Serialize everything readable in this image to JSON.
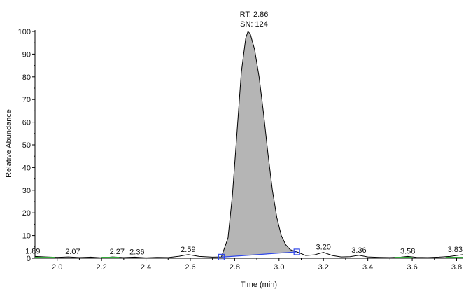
{
  "chart_data": {
    "type": "line",
    "xlabel": "Time (min)",
    "ylabel": "Relative Abundance",
    "xlim": [
      1.9,
      3.83
    ],
    "ylim": [
      0,
      100
    ],
    "x_ticks": [
      "2.0",
      "2.2",
      "2.4",
      "2.6",
      "2.8",
      "3.0",
      "3.2",
      "3.4",
      "3.6",
      "3.8"
    ],
    "y_ticks": [
      "0",
      "10",
      "20",
      "30",
      "40",
      "50",
      "60",
      "70",
      "80",
      "90",
      "100"
    ],
    "peak": {
      "rt_label": "RT: 2.86",
      "sn_label": "SN: 124",
      "apex_x": 2.86,
      "apex_y": 100,
      "start_x": 2.74,
      "start_y": 0.5,
      "end_x": 3.08,
      "end_y": 2.8
    },
    "annotations": [
      {
        "x": 1.89,
        "label": "1.89"
      },
      {
        "x": 2.07,
        "label": "2.07"
      },
      {
        "x": 2.27,
        "label": "2.27"
      },
      {
        "x": 2.36,
        "label": "2.36"
      },
      {
        "x": 2.59,
        "label": "2.59"
      },
      {
        "x": 3.2,
        "label": "3.20"
      },
      {
        "x": 3.36,
        "label": "3.36"
      },
      {
        "x": 3.58,
        "label": "3.58"
      },
      {
        "x": 3.83,
        "label": "3.83"
      }
    ],
    "trace": [
      [
        1.9,
        0.8
      ],
      [
        1.95,
        0.6
      ],
      [
        2.0,
        0.4
      ],
      [
        2.05,
        0.6
      ],
      [
        2.1,
        0.3
      ],
      [
        2.15,
        0.5
      ],
      [
        2.2,
        0.2
      ],
      [
        2.25,
        0.6
      ],
      [
        2.3,
        0.3
      ],
      [
        2.35,
        0.5
      ],
      [
        2.4,
        0.2
      ],
      [
        2.45,
        0.4
      ],
      [
        2.5,
        0.3
      ],
      [
        2.55,
        0.9
      ],
      [
        2.59,
        1.6
      ],
      [
        2.64,
        0.8
      ],
      [
        2.7,
        0.5
      ],
      [
        2.74,
        0.6
      ],
      [
        2.77,
        9
      ],
      [
        2.79,
        28
      ],
      [
        2.81,
        55
      ],
      [
        2.83,
        82
      ],
      [
        2.85,
        97
      ],
      [
        2.86,
        100
      ],
      [
        2.87,
        99
      ],
      [
        2.89,
        92
      ],
      [
        2.91,
        80
      ],
      [
        2.93,
        64
      ],
      [
        2.95,
        46
      ],
      [
        2.97,
        30
      ],
      [
        2.99,
        18
      ],
      [
        3.01,
        10
      ],
      [
        3.03,
        6
      ],
      [
        3.05,
        3.8
      ],
      [
        3.08,
        2.8
      ],
      [
        3.12,
        1.2
      ],
      [
        3.16,
        1.5
      ],
      [
        3.2,
        2.6
      ],
      [
        3.24,
        1.2
      ],
      [
        3.28,
        0.6
      ],
      [
        3.32,
        0.7
      ],
      [
        3.36,
        1.3
      ],
      [
        3.4,
        0.6
      ],
      [
        3.45,
        0.4
      ],
      [
        3.5,
        0.3
      ],
      [
        3.55,
        0.5
      ],
      [
        3.58,
        0.8
      ],
      [
        3.62,
        0.4
      ],
      [
        3.67,
        0.3
      ],
      [
        3.72,
        0.5
      ],
      [
        3.77,
        0.8
      ],
      [
        3.83,
        1.6
      ]
    ],
    "grid": false,
    "colors": {
      "trace": "#000000",
      "fill": "#b5b5b5",
      "baseline": "#2f47e8",
      "marker": "#2f47e8",
      "noise": "#35a83a"
    }
  }
}
